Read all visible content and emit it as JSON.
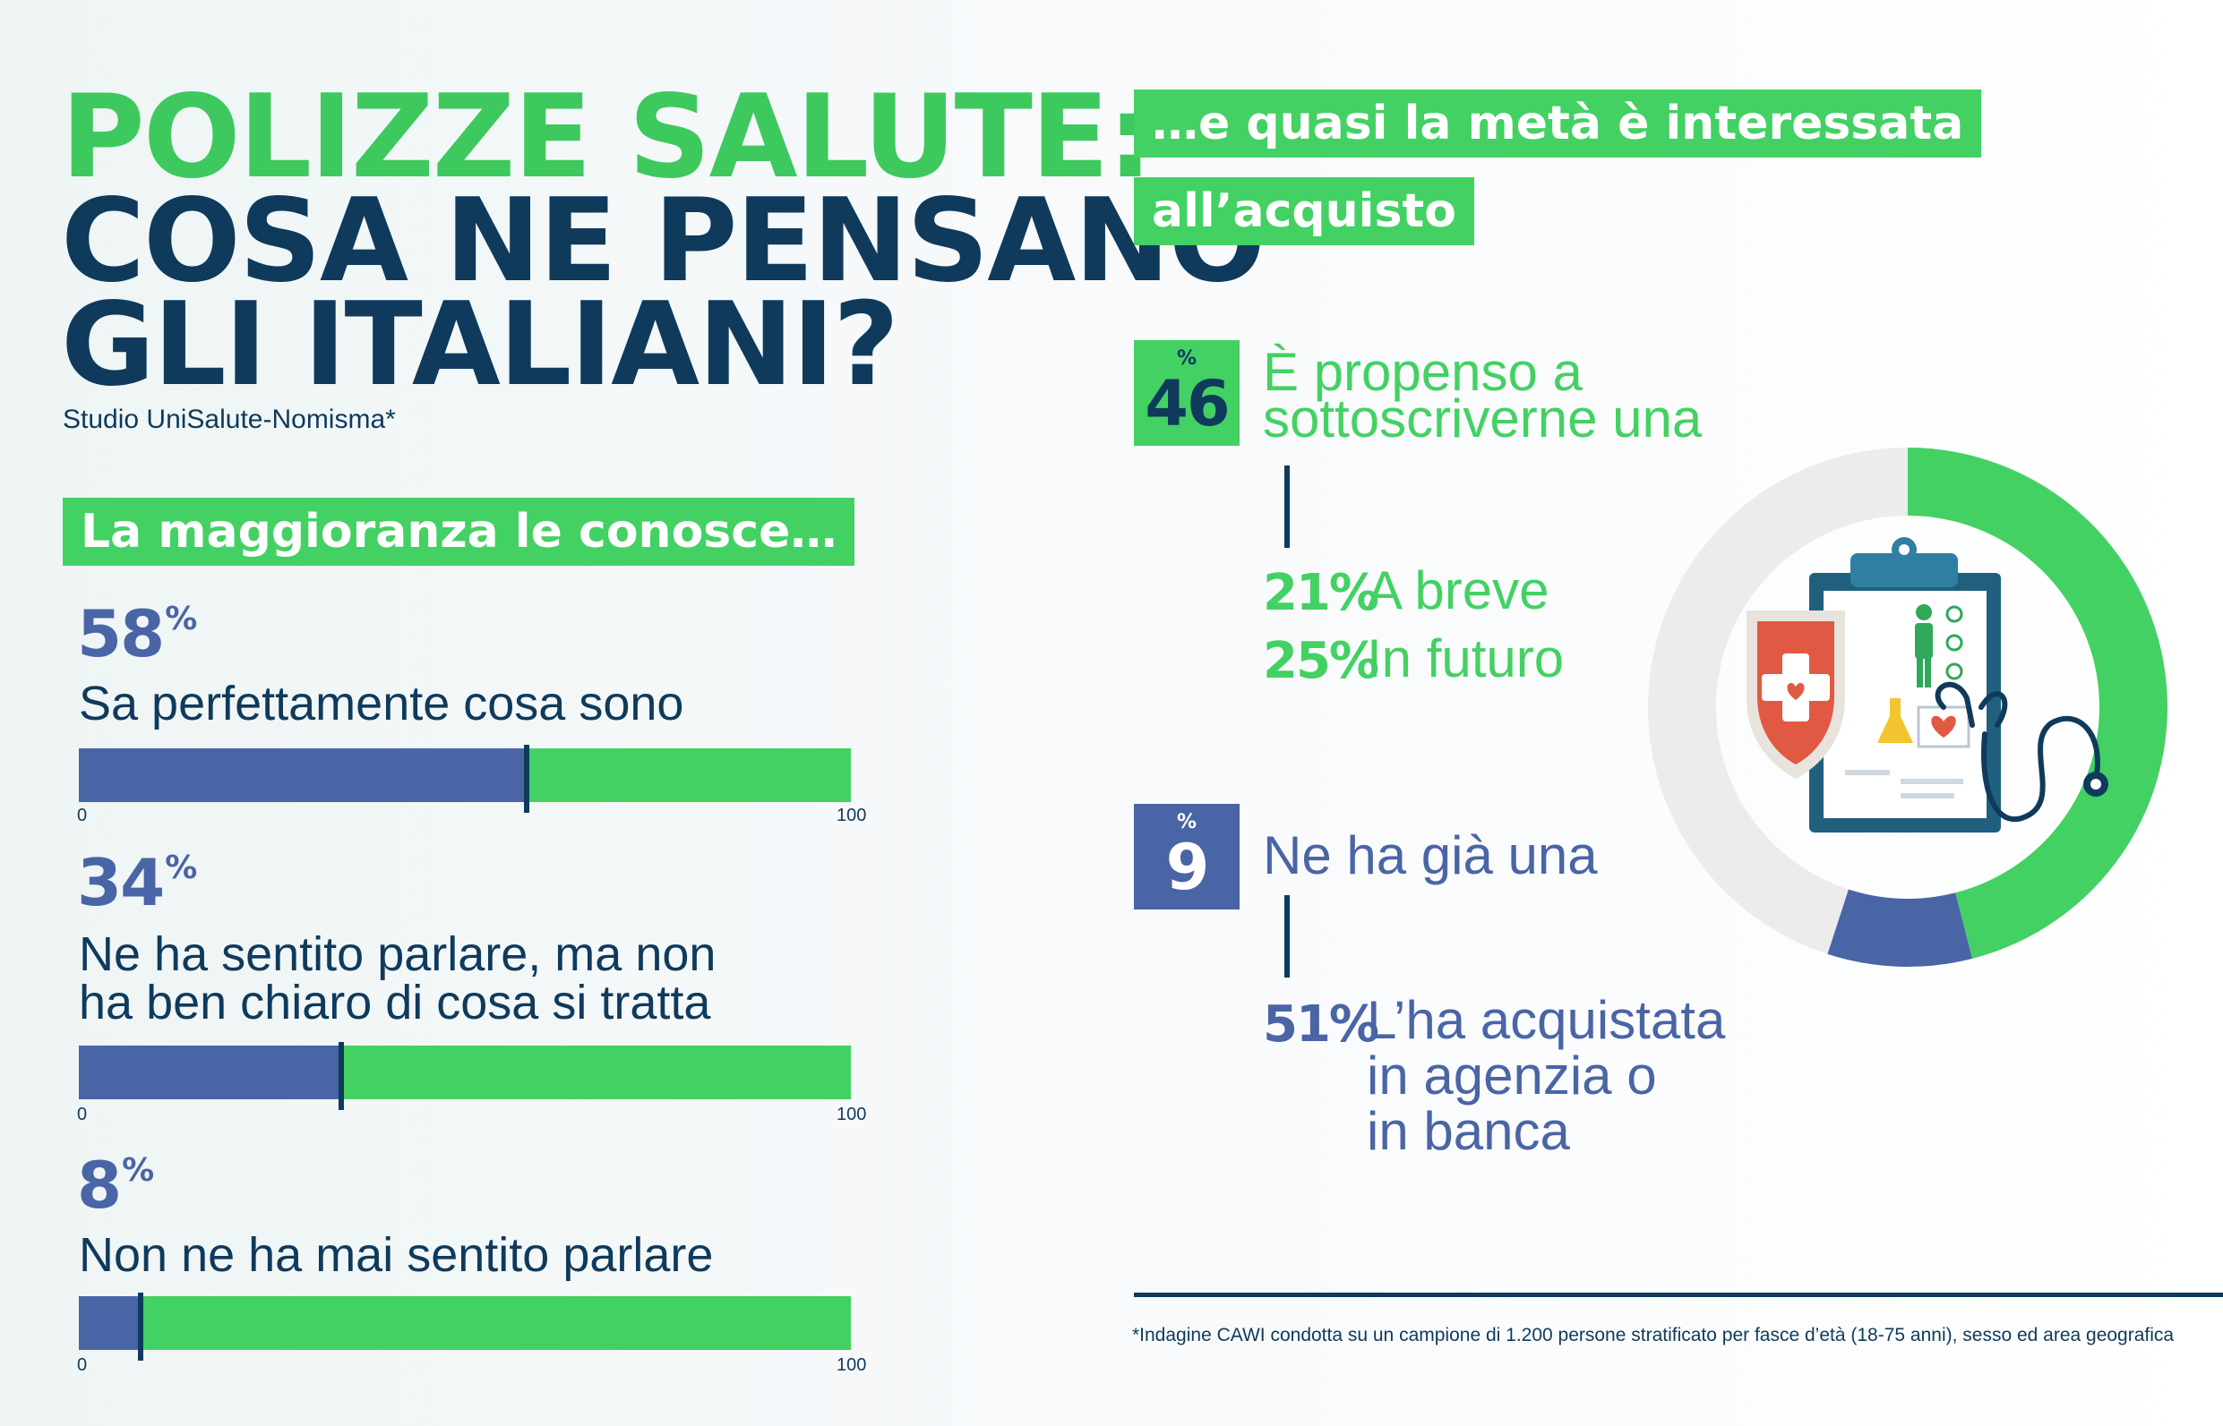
{
  "header": {
    "title_line1": "POLIZZE SALUTE:",
    "title_line2": "COSA NE PENSANO",
    "title_line3": "GLI ITALIANI?",
    "subtitle": "Studio UniSalute-Nomisma*"
  },
  "left_section": {
    "banner": "La maggioranza le conosce…",
    "percent_symbol": "%",
    "tick_min": "0",
    "tick_max": "100"
  },
  "chart_data": {
    "type": "bar",
    "orientation": "horizontal",
    "xlim": [
      0,
      100
    ],
    "categories": [
      "Sa perfettamente cosa sono",
      "Ne ha sentito parlare, ma non ha ben chiaro di cosa si tratta",
      "Non ne ha mai sentito parlare"
    ],
    "values": [
      58,
      34,
      8
    ],
    "bars": [
      {
        "value": 58,
        "value_label": "58",
        "label_lines": [
          "Sa perfettamente cosa sono"
        ]
      },
      {
        "value": 34,
        "value_label": "34",
        "label_lines": [
          "Ne ha sentito parlare, ma non",
          "ha ben chiaro di cosa si tratta"
        ]
      },
      {
        "value": 8,
        "value_label": "8",
        "label_lines": [
          "Non ne ha mai sentito parlare"
        ]
      }
    ],
    "colors": {
      "fill": "#4a65a6",
      "track": "#43d163",
      "marker": "#0f3a5c"
    }
  },
  "right_section": {
    "banner_line1": "…e quasi la metà è interessata",
    "banner_line2": "all’acquisto",
    "stat1": {
      "symbol": "%",
      "value": "46",
      "text_line1": "È propenso a",
      "text_line2": "sottoscriverne una",
      "breakdown": [
        {
          "pct": "21%",
          "label": "A breve"
        },
        {
          "pct": "25%",
          "label": "In futuro"
        }
      ]
    },
    "stat2": {
      "symbol": "%",
      "value": "9",
      "text": "Ne ha già una",
      "breakdown": {
        "pct": "51%",
        "label_lines": [
          "L’ha acquistata",
          "in agenzia o",
          "in banca"
        ]
      }
    }
  },
  "donut": {
    "interested": 46,
    "already_have": 9,
    "other": 45,
    "colors": {
      "interested": "#43d163",
      "already_have": "#4a65a6",
      "other": "#ececec"
    }
  },
  "footnote": "*Indagine CAWI condotta su un campione di 1.200 persone stratificato per fasce d’età (18-75 anni), sesso ed area geografica",
  "colors": {
    "green": "#43d163",
    "title_green": "#3ec95e",
    "navy": "#0f3a5c",
    "blue": "#4a65a6",
    "white": "#ffffff"
  }
}
